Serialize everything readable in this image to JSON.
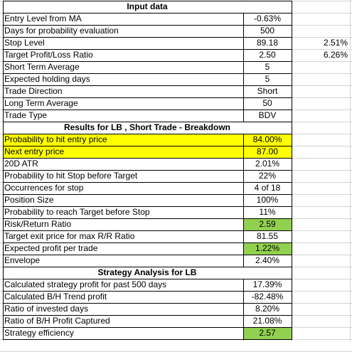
{
  "sections": [
    {
      "header": "Input data",
      "rows": [
        {
          "label": "Entry Level from MA",
          "value": "-0.63%"
        },
        {
          "label": "Days for probability evaluation",
          "value": "500"
        },
        {
          "label": "Stop Level",
          "value": "89.18",
          "extra": "2.51%"
        },
        {
          "label": "Target Profit/Loss Ratio",
          "value": "2.50",
          "extra": "6.26%"
        },
        {
          "label": "Short Term Average",
          "value": "5"
        },
        {
          "label": "Expected holding days",
          "value": "5"
        },
        {
          "label": "Trade Direction",
          "value": "Short"
        },
        {
          "label": "Long Term Average",
          "value": "50"
        },
        {
          "label": "Trade Type",
          "value": "BDV"
        }
      ]
    },
    {
      "header": "Results for LB , Short Trade - Breakdown",
      "rows": [
        {
          "label": "Probability to hit entry price",
          "value": "84.00%",
          "highlight": "yellow"
        },
        {
          "label": "Next entry price",
          "value": "87.00",
          "highlight": "yellow"
        },
        {
          "label": "20D ATR",
          "value": "2.01%"
        },
        {
          "label": "Probability to hit Stop before Target",
          "value": "22%"
        },
        {
          "label": "Occurrences for stop",
          "value": "4 of 18"
        },
        {
          "label": "Position Size",
          "value": "100%"
        },
        {
          "label": "Probability to reach Target before Stop",
          "value": "11%"
        },
        {
          "label": "Risk/Return Ratio",
          "value": "2.59",
          "highlight": "green"
        },
        {
          "label": "Target exit price for max R/R Ratio",
          "value": "81.55"
        },
        {
          "label": "Expected profit per trade",
          "value": "1.22%",
          "highlight": "green"
        },
        {
          "label": "Envelope",
          "value": "2.40%"
        }
      ]
    },
    {
      "header": "Strategy Analysis for LB",
      "rows": [
        {
          "label": "Calculated strategy profit for past 500 days",
          "value": "17.39%"
        },
        {
          "label": "Calculated B/H Trend profit",
          "value": "-82.48%"
        },
        {
          "label": "Ratio of invested days",
          "value": "8.20%"
        },
        {
          "label": "Ratio of B/H Profit Captured",
          "value": "21.08%"
        },
        {
          "label": "Strategy efficiency",
          "value": "2.57",
          "highlight": "green"
        }
      ]
    }
  ],
  "colors": {
    "yellow": "#ffff00",
    "green": "#92d050",
    "grid": "#d4d4d4"
  }
}
